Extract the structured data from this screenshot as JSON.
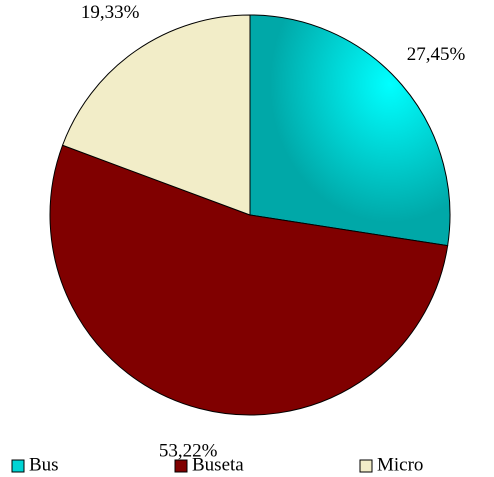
{
  "chart_data": {
    "type": "pie",
    "categories": [
      "Bus",
      "Buseta",
      "Micro"
    ],
    "values": [
      27.45,
      53.22,
      19.33
    ],
    "value_labels": [
      "27,45%",
      "53,22%",
      "19,33%"
    ],
    "colors": [
      "#00d4d4",
      "#800000",
      "#f2edc8"
    ],
    "legend": "bottom"
  }
}
